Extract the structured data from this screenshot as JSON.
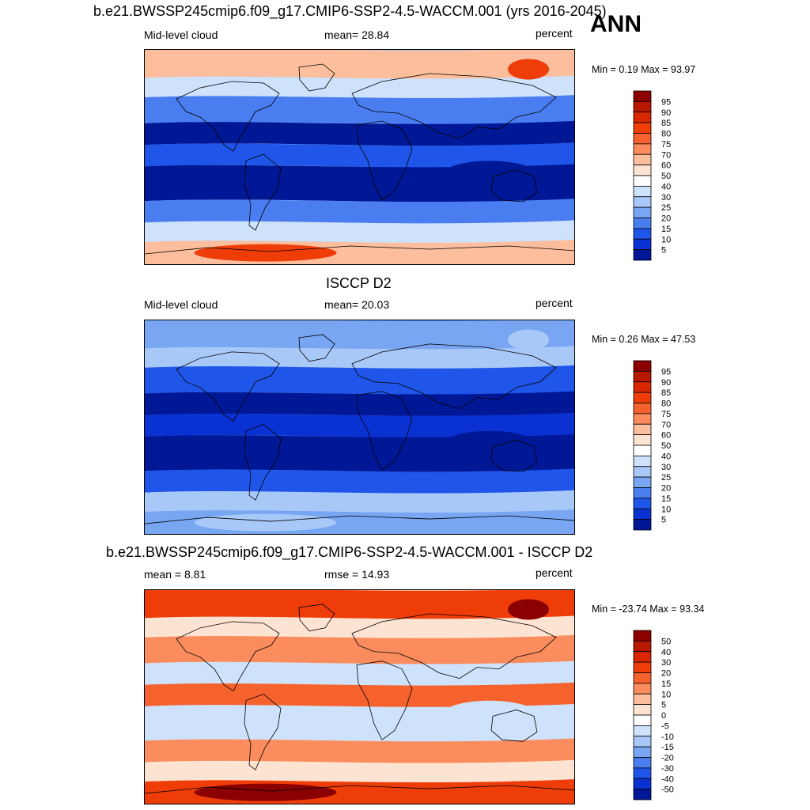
{
  "season": "ANN",
  "panels": [
    {
      "id": "model",
      "title": "b.e21.BWSSP245cmip6.f09_g17.CMIP6-SSP2-4.5-WACCM.001 (yrs 2016-2045)",
      "left_label": "Mid-level cloud",
      "center_label": "mean=  28.84",
      "right_label": "percent",
      "minmax": "Min =   0.19 Max =  93.97",
      "colorbar": {
        "labels": [
          "95",
          "90",
          "85",
          "80",
          "75",
          "70",
          "60",
          "50",
          "40",
          "30",
          "25",
          "20",
          "15",
          "10",
          "5"
        ],
        "colors": [
          "#8b0000",
          "#b81800",
          "#d92800",
          "#ef3d0a",
          "#f5622e",
          "#fa8c5e",
          "#fcbe9c",
          "#fde3d2",
          "#ffffff",
          "#cfe2fb",
          "#a8c8f8",
          "#78a6f3",
          "#4a7ef0",
          "#1f55e8",
          "#0a32d2",
          "#001896"
        ]
      },
      "fill_colors": {
        "background": "#a8c8f8",
        "polar_high": "#fcbe9c",
        "polar_peak": "#ef3d0a",
        "storm_track": "#4a7ef0",
        "subtropic": "#001896",
        "tropic": "#1f55e8",
        "land_light": "#cfe2fb"
      }
    },
    {
      "id": "obs",
      "title": "ISCCP D2",
      "left_label": "Mid-level cloud",
      "center_label": "mean=  20.03",
      "right_label": "percent",
      "minmax": "Min =   0.26 Max =  47.53",
      "colorbar": {
        "labels": [
          "95",
          "90",
          "85",
          "80",
          "75",
          "70",
          "60",
          "50",
          "40",
          "30",
          "25",
          "20",
          "15",
          "10",
          "5"
        ],
        "colors": [
          "#8b0000",
          "#b81800",
          "#d92800",
          "#ef3d0a",
          "#f5622e",
          "#fa8c5e",
          "#fcbe9c",
          "#fde3d2",
          "#ffffff",
          "#cfe2fb",
          "#a8c8f8",
          "#78a6f3",
          "#4a7ef0",
          "#1f55e8",
          "#0a32d2",
          "#001896"
        ]
      },
      "fill_colors": {
        "background": "#4a7ef0",
        "polar_high": "#78a6f3",
        "polar_peak": "#a8c8f8",
        "storm_track": "#1f55e8",
        "subtropic": "#001896",
        "tropic": "#0a32d2",
        "land_light": "#a8c8f8"
      }
    },
    {
      "id": "diff",
      "title": "b.e21.BWSSP245cmip6.f09_g17.CMIP6-SSP2-4.5-WACCM.001 - ISCCP D2",
      "left_label": "mean =   8.81",
      "center_label": "rmse =  14.93",
      "right_label": "percent",
      "minmax": "Min = -23.74 Max =  93.34",
      "colorbar": {
        "labels": [
          "50",
          "40",
          "30",
          "20",
          "15",
          "10",
          "5",
          "0",
          "-5",
          "-10",
          "-15",
          "-20",
          "-30",
          "-40",
          "-50"
        ],
        "colors": [
          "#8b0000",
          "#b81800",
          "#d92800",
          "#ef3d0a",
          "#f5622e",
          "#fa8c5e",
          "#fcbe9c",
          "#fde3d2",
          "#ffffff",
          "#cfe2fb",
          "#a8c8f8",
          "#78a6f3",
          "#4a7ef0",
          "#1f55e8",
          "#0a32d2",
          "#001896"
        ]
      },
      "fill_colors": {
        "background": "#fcbe9c",
        "polar_high": "#ef3d0a",
        "polar_peak": "#8b0000",
        "storm_track": "#fa8c5e",
        "subtropic": "#cfe2fb",
        "tropic": "#f5622e",
        "land_light": "#fde3d2"
      }
    }
  ]
}
